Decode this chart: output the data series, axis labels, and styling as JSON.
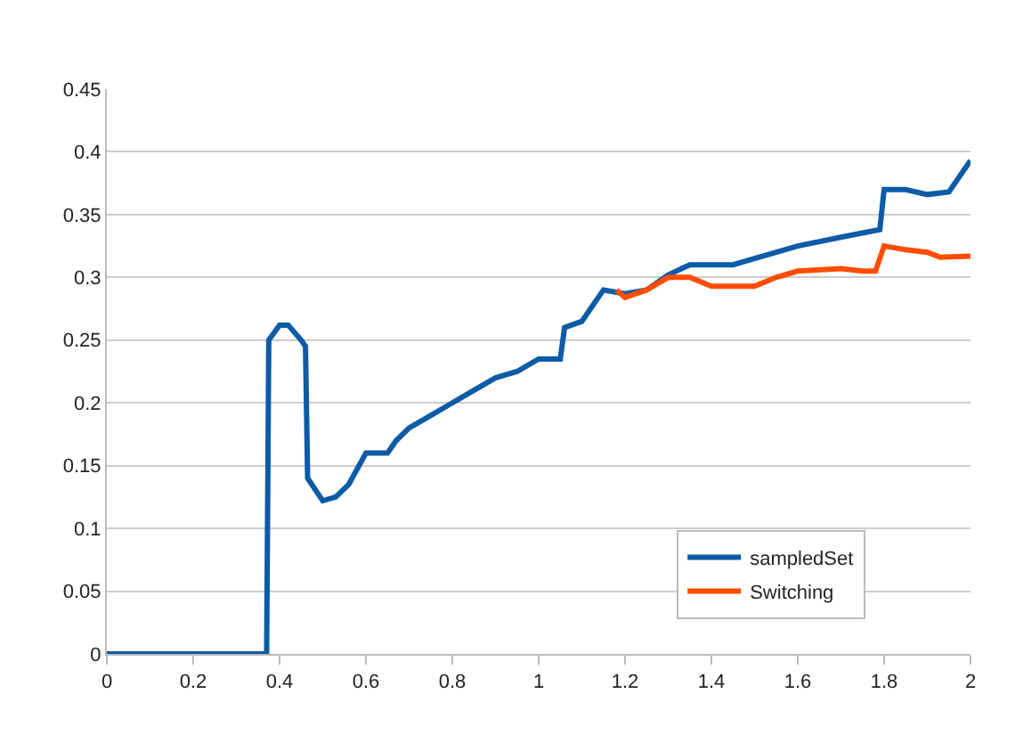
{
  "chart_data": {
    "type": "line",
    "xlim": [
      0,
      2
    ],
    "xticks": [
      0,
      0.2,
      0.4,
      0.6,
      0.8,
      1,
      1.2,
      1.4,
      1.6,
      1.8,
      2
    ],
    "ylim": [
      0,
      0.45
    ],
    "yticks": [
      0,
      0.05,
      0.1,
      0.15,
      0.2,
      0.25,
      0.3,
      0.35,
      0.4,
      0.45
    ],
    "grid": "y",
    "legend": "bottom right",
    "marker": "none",
    "line_style": "solid",
    "series": [
      {
        "name": "sampledSet",
        "color": "#0d5ba6",
        "x": [
          0,
          0.37,
          0.375,
          0.4,
          0.42,
          0.45,
          0.46,
          0.465,
          0.5,
          0.53,
          0.56,
          0.6,
          0.65,
          0.67,
          0.7,
          0.75,
          0.8,
          0.85,
          0.9,
          0.95,
          1.0,
          1.05,
          1.06,
          1.1,
          1.15,
          1.2,
          1.25,
          1.3,
          1.35,
          1.45,
          1.5,
          1.6,
          1.7,
          1.79,
          1.8,
          1.85,
          1.9,
          1.95,
          2.0
        ],
        "values": [
          0,
          0,
          0.25,
          0.262,
          0.262,
          0.25,
          0.245,
          0.14,
          0.122,
          0.125,
          0.135,
          0.16,
          0.16,
          0.17,
          0.18,
          0.19,
          0.2,
          0.21,
          0.22,
          0.225,
          0.235,
          0.235,
          0.26,
          0.265,
          0.29,
          0.287,
          0.29,
          0.302,
          0.31,
          0.31,
          0.315,
          0.325,
          0.332,
          0.338,
          0.37,
          0.37,
          0.366,
          0.368,
          0.393
        ]
      },
      {
        "name": "Switching",
        "color": "#ff4d00",
        "x": [
          1.18,
          1.2,
          1.25,
          1.3,
          1.35,
          1.4,
          1.5,
          1.55,
          1.6,
          1.7,
          1.75,
          1.78,
          1.8,
          1.85,
          1.9,
          1.93,
          2.0
        ],
        "values": [
          0.29,
          0.284,
          0.29,
          0.3,
          0.3,
          0.293,
          0.293,
          0.3,
          0.305,
          0.307,
          0.305,
          0.305,
          0.325,
          0.322,
          0.32,
          0.316,
          0.317
        ]
      }
    ]
  }
}
